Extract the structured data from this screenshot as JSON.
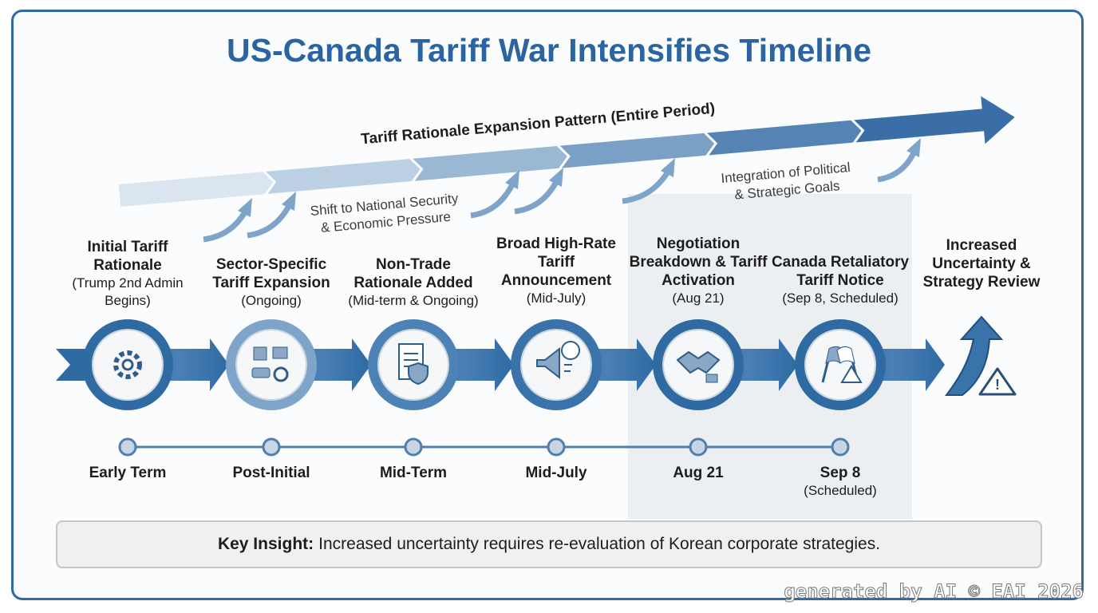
{
  "title": "US-Canada Tariff War Intensifies Timeline",
  "pattern": {
    "label": "Tariff Rationale Expansion Pattern (Entire Period)",
    "notes": [
      [
        "Shift to National Security",
        "& Economic Pressure"
      ],
      [
        "Integration of Political",
        "& Strategic Goals"
      ]
    ]
  },
  "stages": [
    {
      "title": "Initial Tariff Rationale",
      "detail": "(Trump 2nd Admin Begins)",
      "date": "Early Term"
    },
    {
      "title": "Sector-Specific Tariff Expansion",
      "detail": "(Ongoing)",
      "date": "Post-Initial"
    },
    {
      "title": "Non-Trade Rationale Added",
      "detail": "(Mid-term & Ongoing)",
      "date": "Mid-Term"
    },
    {
      "title": "Broad High-Rate Tariff Announcement",
      "detail": "(Mid-July)",
      "date": "Mid-July"
    },
    {
      "title": "Negotiation Breakdown & Tariff Activation",
      "detail": "(Aug 21)",
      "date": "Aug 21"
    },
    {
      "title": "Canada Retaliatory Tariff Notice",
      "detail": "(Sep 8, Scheduled)",
      "date": "Sep 8",
      "date_note": "(Scheduled)"
    }
  ],
  "outcome": "Increased Uncertainty & Strategy Review",
  "insight": {
    "label": "Key Insight:",
    "text": "Increased uncertainty requires re-evaluation of Korean corporate strategies."
  },
  "watermark": "generated by AI © EAI 2026"
}
